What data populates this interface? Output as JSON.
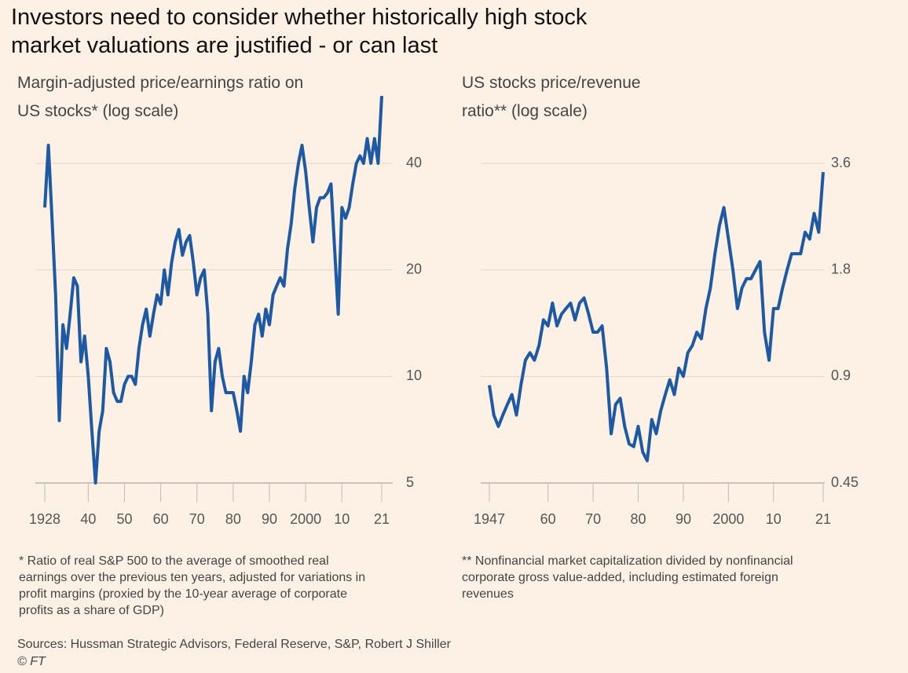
{
  "title": "Investors need to consider whether historically high stock market valuations are justified - or can last",
  "source": "Sources: Hussman Strategic Advisors, Federal Reserve, S&P, Robert J Shiller",
  "credit": "© FT",
  "chart_data": [
    {
      "type": "line",
      "title": "Margin-adjusted price/earnings ratio on US stocks* (log scale)",
      "note": "* Ratio of real S&P 500 to the average of smoothed real earnings over the previous ten years, adjusted for variations in profit margins (proxied by the 10-year average of corporate profits as a share of GDP)",
      "color": "#1d5aa3",
      "log_scale": true,
      "grid": true,
      "x": [
        1928,
        1929,
        1930,
        1931,
        1932,
        1933,
        1934,
        1935,
        1936,
        1937,
        1938,
        1939,
        1940,
        1941,
        1942,
        1943,
        1944,
        1945,
        1946,
        1947,
        1948,
        1949,
        1950,
        1951,
        1952,
        1953,
        1954,
        1955,
        1956,
        1957,
        1958,
        1959,
        1960,
        1961,
        1962,
        1963,
        1964,
        1965,
        1966,
        1967,
        1968,
        1969,
        1970,
        1971,
        1972,
        1973,
        1974,
        1975,
        1976,
        1977,
        1978,
        1979,
        1980,
        1981,
        1982,
        1983,
        1984,
        1985,
        1986,
        1987,
        1988,
        1989,
        1990,
        1991,
        1992,
        1993,
        1994,
        1995,
        1996,
        1997,
        1998,
        1999,
        2000,
        2001,
        2002,
        2003,
        2004,
        2005,
        2006,
        2007,
        2008,
        2009,
        2010,
        2011,
        2012,
        2013,
        2014,
        2015,
        2016,
        2017,
        2018,
        2019,
        2020,
        2021
      ],
      "values": [
        30,
        45,
        28,
        17,
        7.5,
        14,
        12,
        15,
        19,
        18,
        11,
        13,
        10,
        7,
        5,
        7,
        8,
        12,
        11,
        9,
        8.5,
        8.5,
        9.5,
        10,
        10,
        9.5,
        12,
        14,
        15.5,
        13,
        15,
        17,
        16,
        20,
        17,
        21,
        24,
        26,
        22,
        24,
        25,
        21,
        17,
        19,
        20,
        15,
        8,
        11,
        12,
        10,
        9,
        9,
        9,
        8,
        7,
        10,
        9,
        11,
        14,
        15,
        13,
        15.5,
        14,
        17,
        18,
        19,
        18,
        23,
        27,
        34,
        40,
        45,
        38,
        30,
        24,
        30,
        32,
        32,
        33,
        35,
        23,
        15,
        30,
        28,
        30,
        35,
        40,
        42,
        40,
        47,
        40,
        47,
        40,
        62
      ],
      "xlim": [
        1928,
        2021
      ],
      "xticks": [
        1928,
        {
          "value": 1940,
          "label": "40"
        },
        {
          "value": 1950,
          "label": "50"
        },
        {
          "value": 1960,
          "label": "60"
        },
        {
          "value": 1970,
          "label": "70"
        },
        {
          "value": 1980,
          "label": "80"
        },
        {
          "value": 1990,
          "label": "90"
        },
        2000,
        {
          "value": 2010,
          "label": "10"
        },
        {
          "value": 2021,
          "label": "21"
        }
      ],
      "ylim": [
        5,
        65
      ],
      "yticks": [
        5,
        10,
        20,
        40
      ]
    },
    {
      "type": "line",
      "title": "US stocks price/revenue ratio** (log scale)",
      "note": "** Nonfinancial market capitalization divided by nonfinancial corporate gross value-added, including estimated foreign revenues",
      "color": "#1d5aa3",
      "log_scale": true,
      "grid": true,
      "x": [
        1947,
        1948,
        1949,
        1950,
        1951,
        1952,
        1953,
        1954,
        1955,
        1956,
        1957,
        1958,
        1959,
        1960,
        1961,
        1962,
        1963,
        1964,
        1965,
        1966,
        1967,
        1968,
        1969,
        1970,
        1971,
        1972,
        1973,
        1974,
        1975,
        1976,
        1977,
        1978,
        1979,
        1980,
        1981,
        1982,
        1983,
        1984,
        1985,
        1986,
        1987,
        1988,
        1989,
        1990,
        1991,
        1992,
        1993,
        1994,
        1995,
        1996,
        1997,
        1998,
        1999,
        2000,
        2001,
        2002,
        2003,
        2004,
        2005,
        2006,
        2007,
        2008,
        2009,
        2010,
        2011,
        2012,
        2013,
        2014,
        2015,
        2016,
        2017,
        2018,
        2019,
        2020,
        2021
      ],
      "values": [
        0.85,
        0.7,
        0.65,
        0.7,
        0.75,
        0.8,
        0.7,
        0.85,
        1.0,
        1.05,
        1.0,
        1.1,
        1.3,
        1.25,
        1.45,
        1.25,
        1.35,
        1.4,
        1.45,
        1.3,
        1.45,
        1.5,
        1.35,
        1.2,
        1.2,
        1.25,
        0.95,
        0.62,
        0.75,
        0.78,
        0.65,
        0.58,
        0.57,
        0.65,
        0.55,
        0.52,
        0.68,
        0.62,
        0.72,
        0.8,
        0.88,
        0.8,
        0.95,
        0.9,
        1.05,
        1.1,
        1.2,
        1.15,
        1.4,
        1.6,
        2.0,
        2.4,
        2.7,
        2.2,
        1.8,
        1.4,
        1.6,
        1.7,
        1.7,
        1.8,
        1.9,
        1.2,
        1.0,
        1.4,
        1.4,
        1.6,
        1.8,
        2.0,
        2.0,
        2.0,
        2.3,
        2.2,
        2.6,
        2.3,
        3.4
      ],
      "xlim": [
        1947,
        2021
      ],
      "xticks": [
        1947,
        {
          "value": 1960,
          "label": "60"
        },
        {
          "value": 1970,
          "label": "70"
        },
        {
          "value": 1980,
          "label": "80"
        },
        {
          "value": 1990,
          "label": "90"
        },
        2000,
        {
          "value": 2010,
          "label": "10"
        },
        {
          "value": 2021,
          "label": "21"
        }
      ],
      "ylim": [
        0.45,
        5.85
      ],
      "yticks": [
        0.45,
        0.9,
        1.8,
        3.6
      ]
    }
  ]
}
